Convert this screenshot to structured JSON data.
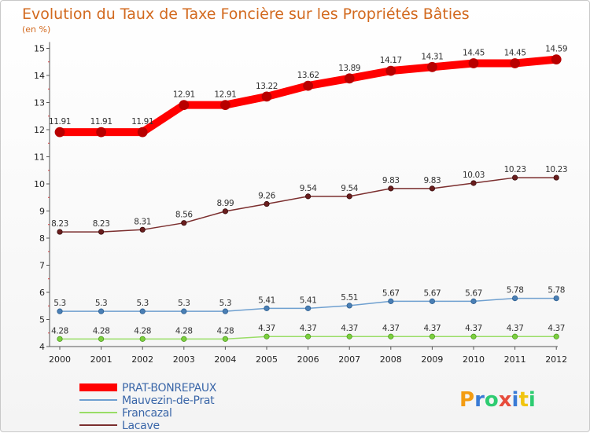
{
  "chart_data": {
    "type": "line",
    "title": "Evolution du Taux de Taxe Foncière sur les Propriétés Bâties",
    "subtitle": "(en %)",
    "x": [
      "2000",
      "2001",
      "2002",
      "2003",
      "2004",
      "2005",
      "2006",
      "2007",
      "2008",
      "2009",
      "2010",
      "2011",
      "2012"
    ],
    "ylim": [
      4,
      15
    ],
    "yticks": [
      "4",
      "5",
      "6",
      "7",
      "8",
      "9",
      "10",
      "11",
      "12",
      "13",
      "14",
      "15"
    ],
    "grid": false,
    "legend_placement": "bottom-left",
    "series": [
      {
        "name": "PRAT-BONREPAUX",
        "color": "#ff0000",
        "values": [
          11.91,
          11.91,
          11.91,
          12.91,
          12.91,
          13.22,
          13.62,
          13.89,
          14.17,
          14.31,
          14.45,
          14.45,
          14.59
        ],
        "labels": [
          "11.91",
          "11.91",
          "11.91",
          "12.91",
          "12.91",
          "13.22",
          "13.62",
          "13.89",
          "14.17",
          "14.31",
          "14.45",
          "14.45",
          "14.59"
        ]
      },
      {
        "name": "Mauvezin-de-Prat",
        "color": "#6fa0d0",
        "values": [
          5.3,
          5.3,
          5.3,
          5.3,
          5.3,
          5.41,
          5.41,
          5.51,
          5.67,
          5.67,
          5.67,
          5.78,
          5.78
        ],
        "labels": [
          "5.3",
          "5.3",
          "5.3",
          "5.3",
          "5.3",
          "5.41",
          "5.41",
          "5.51",
          "5.67",
          "5.67",
          "5.67",
          "5.78",
          "5.78"
        ]
      },
      {
        "name": "Francazal",
        "color": "#99dd66",
        "values": [
          4.28,
          4.28,
          4.28,
          4.28,
          4.28,
          4.37,
          4.37,
          4.37,
          4.37,
          4.37,
          4.37,
          4.37,
          4.37
        ],
        "labels": [
          "4.28",
          "4.28",
          "4.28",
          "4.28",
          "4.28",
          "4.37",
          "4.37",
          "4.37",
          "4.37",
          "4.37",
          "4.37",
          "4.37",
          "4.37"
        ]
      },
      {
        "name": "Lacave",
        "color": "#7b2e2e",
        "values": [
          8.23,
          8.23,
          8.31,
          8.56,
          8.99,
          9.26,
          9.54,
          9.54,
          9.83,
          9.83,
          10.03,
          10.23,
          10.23
        ],
        "labels": [
          "8.23",
          "8.23",
          "8.31",
          "8.56",
          "8.99",
          "9.26",
          "9.54",
          "9.54",
          "9.83",
          "9.83",
          "10.03",
          "10.23",
          "10.23"
        ]
      }
    ]
  },
  "logo": {
    "letters": [
      "P",
      "r",
      "o",
      "x",
      "i",
      "t",
      "i"
    ],
    "colors": [
      "#f39c12",
      "#3a7bd5",
      "#2ecc71",
      "#e74c3c",
      "#3a7bd5",
      "#f1c40f",
      "#2ecc71"
    ]
  }
}
